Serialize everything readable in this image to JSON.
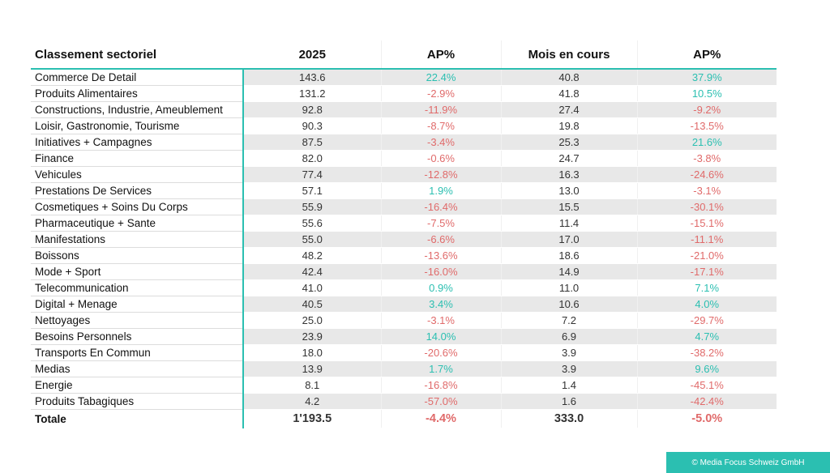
{
  "table": {
    "headers": [
      "Classement sectoriel",
      "2025",
      "AP%",
      "Mois en cours",
      "AP%"
    ],
    "rows": [
      {
        "sector": "Commerce De Detail",
        "y2025": "143.6",
        "ap1": "22.4%",
        "month": "40.8",
        "ap2": "37.9%"
      },
      {
        "sector": "Produits Alimentaires",
        "y2025": "131.2",
        "ap1": "-2.9%",
        "month": "41.8",
        "ap2": "10.5%"
      },
      {
        "sector": "Constructions, Industrie, Ameublement",
        "y2025": "92.8",
        "ap1": "-11.9%",
        "month": "27.4",
        "ap2": "-9.2%"
      },
      {
        "sector": "Loisir, Gastronomie, Tourisme",
        "y2025": "90.3",
        "ap1": "-8.7%",
        "month": "19.8",
        "ap2": "-13.5%"
      },
      {
        "sector": "Initiatives + Campagnes",
        "y2025": "87.5",
        "ap1": "-3.4%",
        "month": "25.3",
        "ap2": "21.6%"
      },
      {
        "sector": "Finance",
        "y2025": "82.0",
        "ap1": "-0.6%",
        "month": "24.7",
        "ap2": "-3.8%"
      },
      {
        "sector": "Vehicules",
        "y2025": "77.4",
        "ap1": "-12.8%",
        "month": "16.3",
        "ap2": "-24.6%"
      },
      {
        "sector": "Prestations De Services",
        "y2025": "57.1",
        "ap1": "1.9%",
        "month": "13.0",
        "ap2": "-3.1%"
      },
      {
        "sector": "Cosmetiques + Soins Du Corps",
        "y2025": "55.9",
        "ap1": "-16.4%",
        "month": "15.5",
        "ap2": "-30.1%"
      },
      {
        "sector": "Pharmaceutique + Sante",
        "y2025": "55.6",
        "ap1": "-7.5%",
        "month": "11.4",
        "ap2": "-15.1%"
      },
      {
        "sector": "Manifestations",
        "y2025": "55.0",
        "ap1": "-6.6%",
        "month": "17.0",
        "ap2": "-11.1%"
      },
      {
        "sector": "Boissons",
        "y2025": "48.2",
        "ap1": "-13.6%",
        "month": "18.6",
        "ap2": "-21.0%"
      },
      {
        "sector": "Mode + Sport",
        "y2025": "42.4",
        "ap1": "-16.0%",
        "month": "14.9",
        "ap2": "-17.1%"
      },
      {
        "sector": "Telecommunication",
        "y2025": "41.0",
        "ap1": "0.9%",
        "month": "11.0",
        "ap2": "7.1%"
      },
      {
        "sector": "Digital + Menage",
        "y2025": "40.5",
        "ap1": "3.4%",
        "month": "10.6",
        "ap2": "4.0%"
      },
      {
        "sector": "Nettoyages",
        "y2025": "25.0",
        "ap1": "-3.1%",
        "month": "7.2",
        "ap2": "-29.7%"
      },
      {
        "sector": "Besoins Personnels",
        "y2025": "23.9",
        "ap1": "14.0%",
        "month": "6.9",
        "ap2": "4.7%"
      },
      {
        "sector": "Transports En Commun",
        "y2025": "18.0",
        "ap1": "-20.6%",
        "month": "3.9",
        "ap2": "-38.2%"
      },
      {
        "sector": "Medias",
        "y2025": "13.9",
        "ap1": "1.7%",
        "month": "3.9",
        "ap2": "9.6%"
      },
      {
        "sector": "Energie",
        "y2025": "8.1",
        "ap1": "-16.8%",
        "month": "1.4",
        "ap2": "-45.1%"
      },
      {
        "sector": "Produits Tabagiques",
        "y2025": "4.2",
        "ap1": "-57.0%",
        "month": "1.6",
        "ap2": "-42.4%"
      }
    ],
    "total": {
      "sector": "Totale",
      "y2025": "1'193.5",
      "ap1": "-4.4%",
      "month": "333.0",
      "ap2": "-5.0%"
    }
  },
  "footer": {
    "copyright": "© Media Focus Schweiz GmbH"
  },
  "colors": {
    "accent": "#2bbfb1",
    "positive": "#2bbfb1",
    "negative": "#e06a6a",
    "row_shade": "#e8e8e8"
  }
}
